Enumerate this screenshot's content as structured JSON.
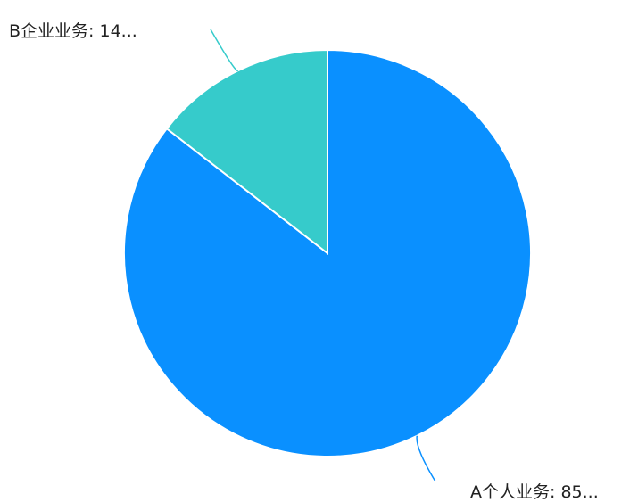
{
  "chart_data": {
    "type": "pie",
    "slices": [
      {
        "name": "A个人业务",
        "value": 85.5,
        "color": "#0a90ff",
        "label": "A个人业务: 85..."
      },
      {
        "name": "B企业业务",
        "value": 14.5,
        "color": "#36cbcb",
        "label": "B企业业务: 14..."
      }
    ],
    "legend": "none",
    "start_angle_deg": 0,
    "direction": "clockwise"
  }
}
